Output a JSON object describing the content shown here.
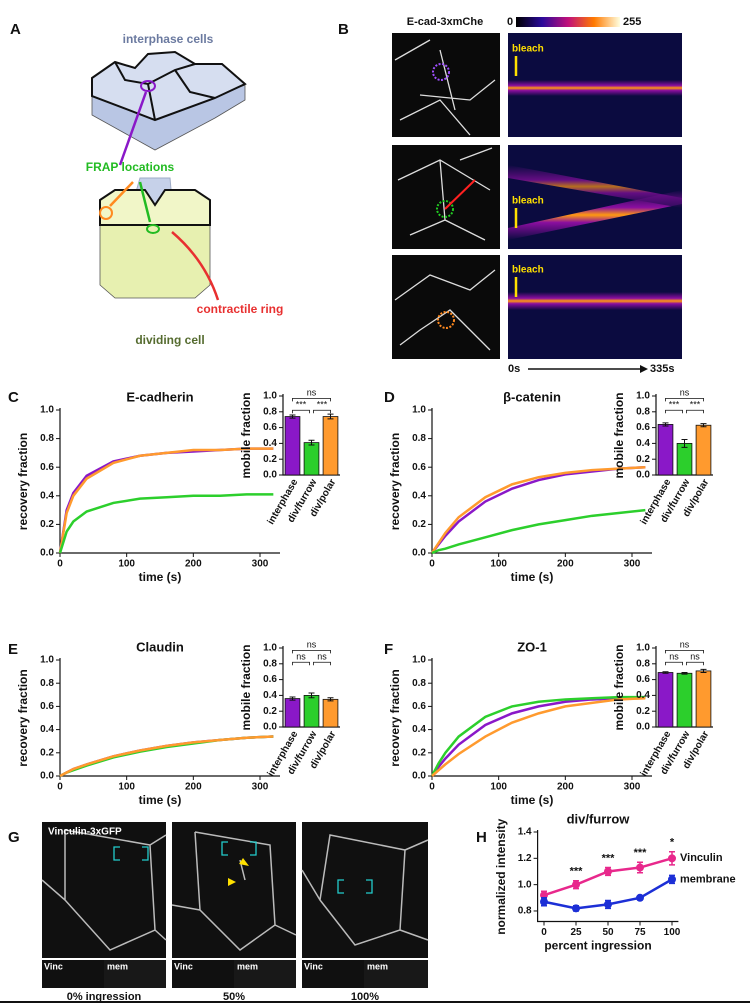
{
  "panel_labels": [
    "A",
    "B",
    "C",
    "D",
    "E",
    "F",
    "G",
    "H"
  ],
  "diagram": {
    "interphase": "interphase cells",
    "frap": "FRAP locations",
    "ring": "contractile ring",
    "dividing": "dividing cell"
  },
  "kymograph": {
    "title": "E-cad-3xmChe",
    "scale_min": "0",
    "scale_max": "255",
    "bleach": [
      "bleach",
      "bleach",
      "bleach"
    ],
    "time_start": "0s",
    "time_end": "335s"
  },
  "micrographs": {
    "title": "Vinculin-3xGFP",
    "insets": [
      [
        "Vinc",
        "mem"
      ],
      [
        "Vinc",
        "mem"
      ],
      [
        "Vinc",
        "mem"
      ]
    ],
    "captions": [
      "0% ingression",
      "50%",
      "100%"
    ]
  },
  "chart_data": [
    {
      "type": "line",
      "title": "E-cadherin",
      "xlabel": "time (s)",
      "ylabel": "recovery fraction",
      "x": [
        0,
        10,
        20,
        40,
        80,
        120,
        160,
        200,
        240,
        280,
        320
      ],
      "xlim": [
        0,
        330
      ],
      "xticks": [
        0,
        100,
        200,
        300
      ],
      "ylim": [
        0,
        1
      ],
      "yticks": [
        {
          "value": 0,
          "label": "0.0"
        },
        0.2,
        0.4,
        0.6,
        0.8,
        {
          "value": 1,
          "label": "1.0"
        }
      ],
      "series": [
        {
          "color": "#8a18c8",
          "values": [
            0,
            0.3,
            0.42,
            0.54,
            0.64,
            0.68,
            0.7,
            0.71,
            0.72,
            0.73,
            0.73
          ]
        },
        {
          "color": "#ff9a2e",
          "values": [
            0,
            0.28,
            0.4,
            0.52,
            0.63,
            0.68,
            0.7,
            0.72,
            0.72,
            0.73,
            0.73
          ]
        },
        {
          "color": "#2ccf2c",
          "values": [
            0,
            0.15,
            0.22,
            0.29,
            0.35,
            0.38,
            0.39,
            0.4,
            0.4,
            0.41,
            0.41
          ]
        }
      ]
    },
    {
      "type": "bar",
      "ylabel": "mobile fraction",
      "categories": [
        "interphase",
        "div/furrow",
        "div/polar"
      ],
      "colors": [
        "#8a18c8",
        "#2ccf2c",
        "#ff9a2e"
      ],
      "values": [
        0.74,
        0.41,
        0.74
      ],
      "errors": [
        0.02,
        0.03,
        0.03
      ],
      "ylim": [
        0,
        1
      ],
      "yticks": [
        {
          "value": 0,
          "label": "0.0"
        },
        0.2,
        0.4,
        0.6,
        0.8,
        {
          "value": 1,
          "label": "1.0"
        }
      ],
      "annotations": [
        "ns",
        "***",
        "***"
      ]
    },
    {
      "type": "line",
      "title": "β-catenin",
      "xlabel": "time (s)",
      "ylabel": "recovery fraction",
      "x": [
        0,
        10,
        20,
        40,
        80,
        120,
        160,
        200,
        240,
        280,
        320
      ],
      "xlim": [
        0,
        330
      ],
      "xticks": [
        0,
        100,
        200,
        300
      ],
      "ylim": [
        0,
        1
      ],
      "yticks": [
        {
          "value": 0,
          "label": "0.0"
        },
        0.2,
        0.4,
        0.6,
        0.8,
        {
          "value": 1,
          "label": "1.0"
        }
      ],
      "series": [
        {
          "color": "#8a18c8",
          "values": [
            0,
            0.06,
            0.12,
            0.22,
            0.36,
            0.45,
            0.51,
            0.55,
            0.57,
            0.59,
            0.6
          ]
        },
        {
          "color": "#ff9a2e",
          "values": [
            0,
            0.07,
            0.14,
            0.25,
            0.39,
            0.48,
            0.53,
            0.56,
            0.58,
            0.59,
            0.6
          ]
        },
        {
          "color": "#2ccf2c",
          "values": [
            0,
            0.02,
            0.03,
            0.06,
            0.11,
            0.16,
            0.2,
            0.23,
            0.26,
            0.28,
            0.3
          ]
        }
      ]
    },
    {
      "type": "bar",
      "ylabel": "mobile fraction",
      "categories": [
        "interphase",
        "div/furrow",
        "div/polar"
      ],
      "colors": [
        "#8a18c8",
        "#2ccf2c",
        "#ff9a2e"
      ],
      "values": [
        0.64,
        0.4,
        0.63
      ],
      "errors": [
        0.02,
        0.05,
        0.02
      ],
      "ylim": [
        0,
        1
      ],
      "yticks": [
        {
          "value": 0,
          "label": "0.0"
        },
        0.2,
        0.4,
        0.6,
        0.8,
        {
          "value": 1,
          "label": "1.0"
        }
      ],
      "annotations": [
        "ns",
        "***",
        "***"
      ]
    },
    {
      "type": "line",
      "title": "Claudin",
      "xlabel": "time (s)",
      "ylabel": "recovery fraction",
      "x": [
        0,
        10,
        20,
        40,
        80,
        120,
        160,
        200,
        240,
        280,
        320
      ],
      "xlim": [
        0,
        330
      ],
      "xticks": [
        0,
        100,
        200,
        300
      ],
      "ylim": [
        0,
        1
      ],
      "yticks": [
        {
          "value": 0,
          "label": "0.0"
        },
        0.2,
        0.4,
        0.6,
        0.8,
        {
          "value": 1,
          "label": "1.0"
        }
      ],
      "series": [
        {
          "color": "#8a18c8",
          "values": [
            0,
            0.03,
            0.06,
            0.1,
            0.17,
            0.22,
            0.26,
            0.29,
            0.31,
            0.33,
            0.34
          ]
        },
        {
          "color": "#2ccf2c",
          "values": [
            0,
            0.03,
            0.05,
            0.09,
            0.16,
            0.21,
            0.25,
            0.28,
            0.31,
            0.33,
            0.34
          ]
        },
        {
          "color": "#ff9a2e",
          "values": [
            0,
            0.03,
            0.06,
            0.1,
            0.17,
            0.22,
            0.26,
            0.29,
            0.31,
            0.33,
            0.34
          ]
        }
      ]
    },
    {
      "type": "bar",
      "ylabel": "mobile fraction",
      "categories": [
        "interphase",
        "div/furrow",
        "div/polar"
      ],
      "colors": [
        "#8a18c8",
        "#2ccf2c",
        "#ff9a2e"
      ],
      "values": [
        0.36,
        0.4,
        0.35
      ],
      "errors": [
        0.02,
        0.03,
        0.02
      ],
      "ylim": [
        0,
        1
      ],
      "yticks": [
        {
          "value": 0,
          "label": "0.0"
        },
        0.2,
        0.4,
        0.6,
        0.8,
        {
          "value": 1,
          "label": "1.0"
        }
      ],
      "annotations": [
        "ns",
        "ns",
        "ns"
      ]
    },
    {
      "type": "line",
      "title": "ZO-1",
      "xlabel": "time (s)",
      "ylabel": "recovery fraction",
      "x": [
        0,
        10,
        20,
        40,
        80,
        120,
        160,
        200,
        240,
        280,
        320
      ],
      "xlim": [
        0,
        330
      ],
      "xticks": [
        0,
        100,
        200,
        300
      ],
      "ylim": [
        0,
        1
      ],
      "yticks": [
        {
          "value": 0,
          "label": "0.0"
        },
        0.2,
        0.4,
        0.6,
        0.8,
        {
          "value": 1,
          "label": "1.0"
        }
      ],
      "series": [
        {
          "color": "#8a18c8",
          "values": [
            0,
            0.08,
            0.15,
            0.27,
            0.44,
            0.54,
            0.6,
            0.64,
            0.66,
            0.67,
            0.68
          ]
        },
        {
          "color": "#2ccf2c",
          "values": [
            0,
            0.11,
            0.2,
            0.34,
            0.51,
            0.6,
            0.64,
            0.66,
            0.67,
            0.68,
            0.68
          ]
        },
        {
          "color": "#ff9a2e",
          "values": [
            0,
            0.05,
            0.1,
            0.19,
            0.34,
            0.46,
            0.54,
            0.6,
            0.63,
            0.66,
            0.67
          ]
        }
      ]
    },
    {
      "type": "bar",
      "ylabel": "mobile fraction",
      "categories": [
        "interphase",
        "div/furrow",
        "div/polar"
      ],
      "colors": [
        "#8a18c8",
        "#2ccf2c",
        "#ff9a2e"
      ],
      "values": [
        0.69,
        0.68,
        0.71
      ],
      "errors": [
        0.01,
        0.01,
        0.02
      ],
      "ylim": [
        0,
        1
      ],
      "yticks": [
        {
          "value": 0,
          "label": "0.0"
        },
        0.2,
        0.4,
        0.6,
        0.8,
        {
          "value": 1,
          "label": "1.0"
        }
      ],
      "annotations": [
        "ns",
        "ns",
        "ns"
      ]
    },
    {
      "type": "line",
      "title": "div/furrow",
      "xlabel": "percent ingression",
      "ylabel": "normalized intensity",
      "x": [
        0,
        25,
        50,
        75,
        100
      ],
      "xlim": [
        -5,
        105
      ],
      "xticks": [
        0,
        25,
        50,
        75,
        100
      ],
      "ylim": [
        0.72,
        1.4
      ],
      "yticks": [
        0.8,
        {
          "value": 1,
          "label": "1.0"
        },
        1.2,
        1.4
      ],
      "series": [
        {
          "name": "Vinculin",
          "color": "#e8288c",
          "values": [
            0.92,
            1.0,
            1.1,
            1.13,
            1.2
          ],
          "errors": [
            0.03,
            0.03,
            0.03,
            0.04,
            0.05
          ]
        },
        {
          "name": "membrane",
          "color": "#1c2fd6",
          "values": [
            0.87,
            0.82,
            0.85,
            0.9,
            1.04
          ],
          "errors": [
            0.03,
            0.02,
            0.03,
            0.01,
            0.03
          ]
        }
      ],
      "significance": [
        null,
        "***",
        "***",
        "***",
        "*"
      ]
    }
  ]
}
